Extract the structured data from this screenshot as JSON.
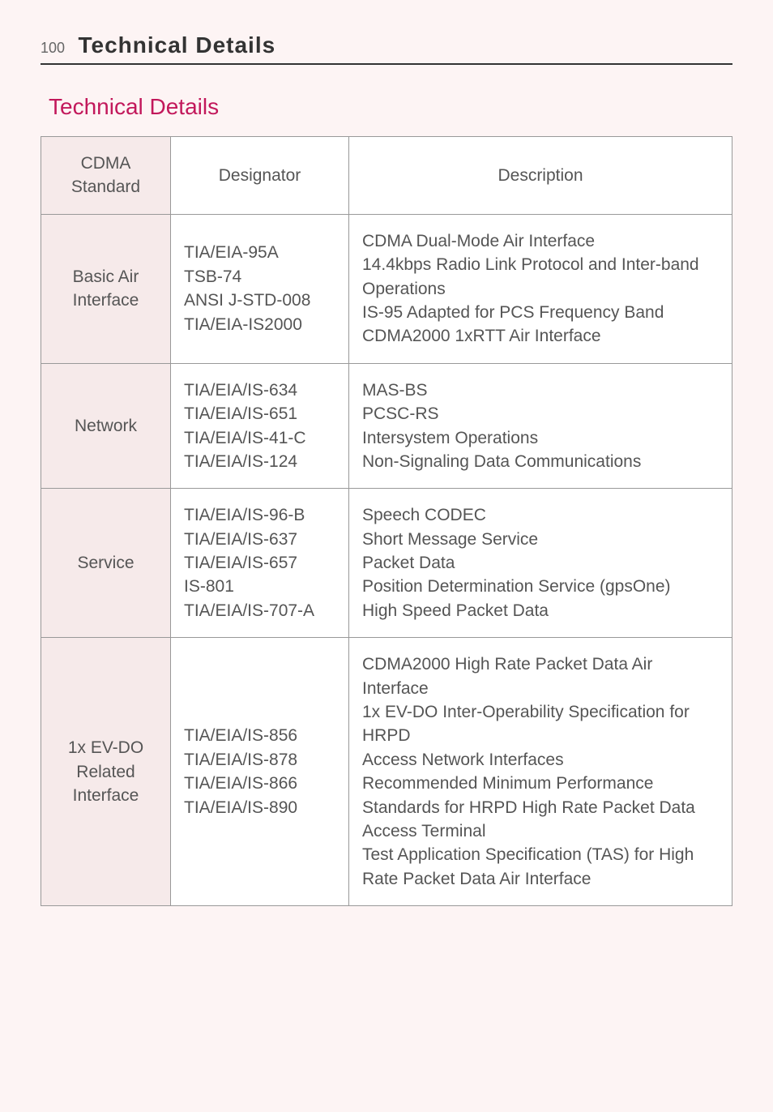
{
  "page": {
    "number": "100",
    "header": "Technical Details"
  },
  "section": {
    "title": "Technical Details"
  },
  "colors": {
    "page_bg": "#fdf4f4",
    "header_rule": "#333333",
    "section_title": "#c2185b",
    "cell_border": "#999999",
    "std_col_bg": "#f6eaea",
    "text": "#555555"
  },
  "table": {
    "headers": {
      "std": "CDMA\nStandard",
      "designator": "Designator",
      "description": "Description"
    },
    "rows": [
      {
        "std": "Basic Air\nInterface",
        "designator": "TIA/EIA-95A\nTSB-74\nANSI J-STD-008\nTIA/EIA-IS2000",
        "description": "CDMA Dual-Mode Air Interface\n14.4kbps Radio Link Protocol and Inter-band Operations\nIS-95 Adapted for PCS Frequency Band\nCDMA2000 1xRTT Air Interface"
      },
      {
        "std": "Network",
        "designator": "TIA/EIA/IS-634\nTIA/EIA/IS-651\nTIA/EIA/IS-41-C\nTIA/EIA/IS-124",
        "description": "MAS-BS\nPCSC-RS\nIntersystem Operations\nNon-Signaling Data Communications"
      },
      {
        "std": "Service",
        "designator": "TIA/EIA/IS-96-B\nTIA/EIA/IS-637\nTIA/EIA/IS-657\nIS-801\nTIA/EIA/IS-707-A",
        "description": "Speech CODEC\nShort Message Service\nPacket Data\nPosition Determination Service (gpsOne)\nHigh Speed Packet Data"
      },
      {
        "std": "1x EV-DO\nRelated\nInterface",
        "designator": "TIA/EIA/IS-856\nTIA/EIA/IS-878\nTIA/EIA/IS-866\nTIA/EIA/IS-890",
        "description": "CDMA2000 High Rate Packet Data Air Interface\n1x EV-DO Inter-Operability Specification for HRPD\nAccess Network Interfaces\nRecommended Minimum Performance Standards for HRPD High Rate Packet Data Access Terminal\nTest Application Specification (TAS) for High Rate Packet Data Air Interface"
      }
    ]
  }
}
